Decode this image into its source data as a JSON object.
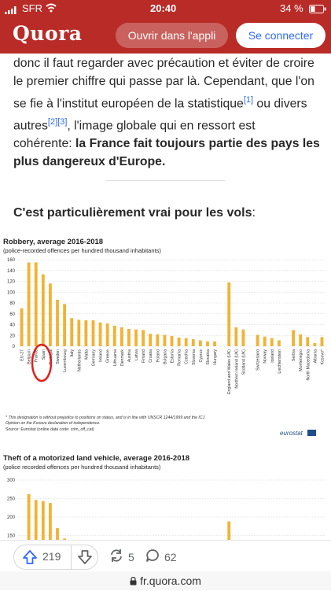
{
  "status_bar": {
    "carrier": "SFR",
    "time": "20:40",
    "battery": "34 %"
  },
  "header": {
    "logo": "Quora",
    "open_app": "Ouvrir dans l'appli",
    "login": "Se connecter"
  },
  "article": {
    "line1": "donc il faut regarder avec précaution et éviter de croire",
    "line2": "le premier chiffre qui passe par là. Cependant, que l'on",
    "line3a": "se fie à l'institut européen de la statistique",
    "ref1": "[1]",
    "line3b": " ou divers",
    "line4a": "autres",
    "ref2": "[2]",
    "ref3": "[3]",
    "line4b": ", l'image globale qui en ressort est",
    "line5a": "cohérente: ",
    "line5b": "la France fait toujours partie des pays les",
    "line6": "plus dangereux d'Europe."
  },
  "section": {
    "bold": "C'est particulièrement vrai pour les vols",
    "rest": ":"
  },
  "chart1": {
    "title": "Robbery, average 2016-2018",
    "subtitle": "(police-recorded offences per hundred  thousand inhabitants)",
    "yticks": [
      "160",
      "140",
      "120",
      "100",
      "80",
      "60",
      "40",
      "20",
      "0"
    ],
    "footnote1": "* This designation is without prejudice to positions on status, and is in line with  UNSCR 1244/1999 and the ICJ",
    "footnote2": "Opinion on the Kosovo declaration of independence.",
    "source": "Source: Eurostat (online data code: crim_off_cat)",
    "brand": "eurostat",
    "categories": [
      "EU-27",
      "Belgium",
      "France",
      "Spain",
      "Portugal",
      "Sweden",
      "Luxembourg",
      "Italy",
      "Netherlands",
      "Malta",
      "Germany",
      "Ireland",
      "Greece",
      "Lithuania",
      "Denmark",
      "Austria",
      "Latvia",
      "Finland",
      "Croatia",
      "Poland",
      "Bulgaria",
      "Estonia",
      "Romania",
      "Czechia",
      "Slovenia",
      "Cyprus",
      "Slovakia",
      "Hungary",
      "",
      "England and Wales (UK)",
      "Northern Ireland (UK)",
      "Scotland (UK)",
      "",
      "Switzerland",
      "Norway",
      "Iceland",
      "Liechtenstein",
      "",
      "Serbia",
      "Montenegro",
      "North Macedonia",
      "Albania",
      "Kosovo*"
    ],
    "values": [
      70,
      155,
      155,
      133,
      116,
      86,
      78,
      52,
      49,
      48,
      48,
      44,
      42,
      38,
      35,
      32,
      31,
      30,
      23,
      22,
      21,
      19,
      16,
      15,
      13,
      11,
      9,
      9,
      null,
      118,
      35,
      31,
      null,
      21,
      18,
      15,
      11,
      null,
      30,
      22,
      17,
      6,
      17
    ]
  },
  "chart2": {
    "title": "Theft of a motorized land vehicle, average 2016-2018",
    "subtitle": "(police recorded offences per hundred  thousand inhabitants)",
    "yticks": [
      "300",
      "250",
      "200",
      "150"
    ],
    "values": [
      null,
      262,
      246,
      243,
      238,
      170,
      142,
      null,
      null,
      null,
      null,
      null,
      null,
      null,
      null,
      null,
      null,
      null,
      null,
      null,
      null,
      null,
      null,
      null,
      null,
      null,
      null,
      null,
      null,
      188,
      null,
      null,
      null,
      null,
      null,
      null,
      null,
      null,
      null,
      null,
      null,
      null,
      null
    ]
  },
  "actions": {
    "upvotes": "219",
    "shares": "5",
    "comments": "62"
  },
  "url": "fr.quora.com",
  "colors": {
    "brand": "#b92b27",
    "bar": "#f2b233",
    "link": "#2e69ff",
    "circle": "#e02020"
  }
}
